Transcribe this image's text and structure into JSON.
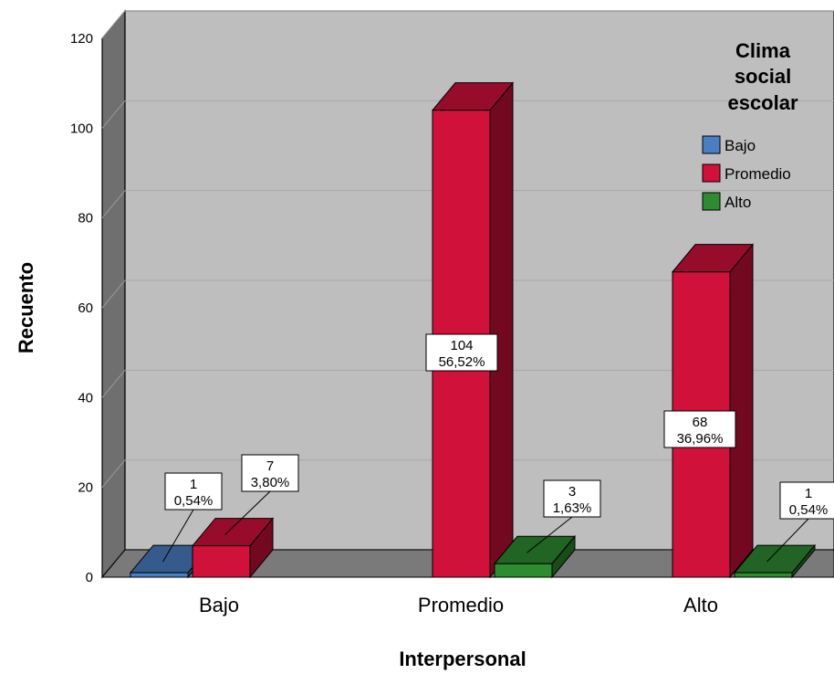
{
  "chart_data": {
    "type": "bar",
    "categories": [
      "Bajo",
      "Promedio",
      "Alto"
    ],
    "series": [
      {
        "name": "Bajo",
        "color": "#4a7ec2",
        "values": [
          1,
          0,
          0
        ],
        "labels": [
          "1",
          "",
          ""
        ],
        "pct_labels": [
          "0,54%",
          "",
          ""
        ]
      },
      {
        "name": "Promedio",
        "color": "#d0113a",
        "values": [
          7,
          104,
          68
        ],
        "labels": [
          "7",
          "104",
          "68"
        ],
        "pct_labels": [
          "3,80%",
          "56,52%",
          "36,96%"
        ]
      },
      {
        "name": "Alto",
        "color": "#2e8b30",
        "values": [
          0,
          3,
          1
        ],
        "labels": [
          "",
          "3",
          "1"
        ],
        "pct_labels": [
          "",
          "1,63%",
          "0,54%"
        ]
      }
    ],
    "xlabel": "Interpersonal",
    "ylabel": "Recuento",
    "ylim": [
      0,
      120
    ],
    "yticks": [
      0,
      20,
      40,
      60,
      80,
      100,
      120
    ],
    "legend": {
      "title_lines": [
        "Clima",
        "social",
        "escolar"
      ],
      "placement": "top-right"
    },
    "grid": true
  }
}
